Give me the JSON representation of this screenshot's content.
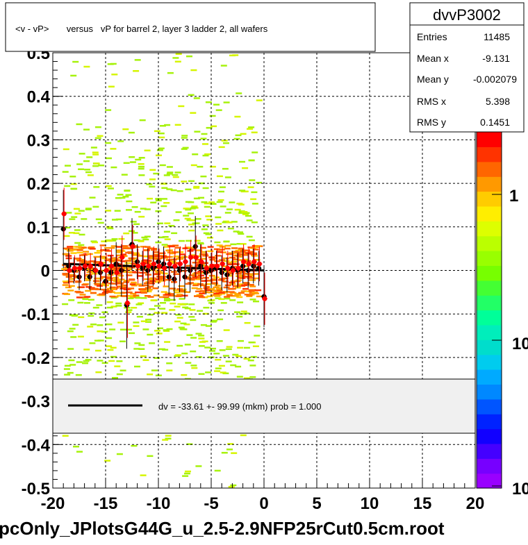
{
  "chart_data": {
    "type": "scatter",
    "title": "<v - vP>       versus   vP for barrel 2, layer 3 ladder 2, all wafers",
    "footer": "pcOnly_JPlotsG44G_u_2.5-2.9NFP25rCut0.5cm.root",
    "xlim": [
      -20,
      20
    ],
    "ylim": [
      -0.5,
      0.5
    ],
    "x_ticks": [
      "-20",
      "-15",
      "-10",
      "-5",
      "0",
      "5",
      "10",
      "15",
      "20"
    ],
    "y_ticks": [
      "-0.5",
      "-0.4",
      "-0.3",
      "-0.2",
      "-0.1",
      "0",
      "0.1",
      "0.2",
      "0.3",
      "0.4",
      "0.5"
    ],
    "grid": true,
    "stats": {
      "name": "dvvP3002",
      "rows": [
        {
          "label": "Entries",
          "value": "11485"
        },
        {
          "label": "Mean x",
          "value": "-9.131"
        },
        {
          "label": "Mean y",
          "value": "-0.002079"
        },
        {
          "label": "RMS x",
          "value": "5.398"
        },
        {
          "label": "RMS y",
          "value": "0.1451"
        }
      ]
    },
    "legend_text": "dv =  -33.61 +- 99.99 (mkm) prob = 1.000",
    "colorbar_labels": [
      "1",
      "10",
      "10"
    ],
    "fit_line": {
      "x": [
        -19,
        0
      ],
      "y": [
        0.015,
        0.0
      ]
    },
    "series": [
      {
        "color": "#000000",
        "x": [
          -19.0,
          -18.5,
          -18.0,
          -17.5,
          -17.0,
          -16.5,
          -16.0,
          -15.5,
          -15.0,
          -14.5,
          -14.0,
          -13.5,
          -13.0,
          -12.5,
          -12.0,
          -11.5,
          -11.0,
          -10.5,
          -10.0,
          -9.5,
          -9.0,
          -8.5,
          -8.0,
          -7.5,
          -7.0,
          -6.5,
          -6.0,
          -5.5,
          -5.0,
          -4.5,
          -4.0,
          -3.5,
          -3.0,
          -2.5,
          -2.0,
          -1.5,
          -1.0,
          -0.5,
          0.0
        ],
        "y": [
          0.095,
          0.01,
          0.0,
          -0.015,
          0.005,
          -0.015,
          0.0,
          -0.005,
          -0.025,
          -0.005,
          0.015,
          0.0,
          -0.08,
          0.06,
          0.02,
          0.005,
          0.0,
          0.005,
          0.02,
          0.015,
          -0.015,
          -0.02,
          0.0,
          -0.015,
          0.0,
          0.055,
          0.01,
          -0.005,
          0.0,
          0.005,
          -0.005,
          -0.01,
          0.005,
          0.0,
          0.01,
          0.0,
          0.01,
          0.005,
          -0.06
        ],
        "err": [
          0.09,
          0.04,
          0.03,
          0.03,
          0.03,
          0.03,
          0.03,
          0.04,
          0.05,
          0.04,
          0.05,
          0.06,
          0.1,
          0.06,
          0.04,
          0.04,
          0.05,
          0.04,
          0.04,
          0.04,
          0.04,
          0.05,
          0.05,
          0.05,
          0.05,
          0.07,
          0.05,
          0.05,
          0.04,
          0.04,
          0.04,
          0.04,
          0.04,
          0.04,
          0.04,
          0.04,
          0.04,
          0.04,
          0.07
        ]
      },
      {
        "color": "#ff0000",
        "x": [
          -19.0,
          -18.5,
          -18.0,
          -17.5,
          -17.0,
          -16.5,
          -16.0,
          -15.5,
          -15.0,
          -14.5,
          -14.0,
          -13.5,
          -13.0,
          -12.5,
          -12.0,
          -11.5,
          -11.0,
          -10.5,
          -10.0,
          -9.5,
          -9.0,
          -8.5,
          -8.0,
          -7.5,
          -7.0,
          -6.5,
          -6.0,
          -5.5,
          -5.0,
          -4.5,
          -4.0,
          -3.5,
          -3.0,
          -2.5,
          -2.0,
          -1.5,
          -1.0,
          -0.5,
          0.0
        ],
        "y": [
          0.13,
          0.0,
          0.005,
          0.005,
          0.01,
          0.01,
          0.0,
          0.015,
          0.0,
          0.01,
          -0.005,
          0.03,
          -0.075,
          0.055,
          0.01,
          0.015,
          0.01,
          0.015,
          0.01,
          0.005,
          0.015,
          0.01,
          0.015,
          0.02,
          0.03,
          0.03,
          0.02,
          0.005,
          0.01,
          0.01,
          0.015,
          0.005,
          0.0,
          0.005,
          0.02,
          0.015,
          0.02,
          0.015,
          -0.065
        ],
        "err": [
          0.06,
          0.04,
          0.03,
          0.03,
          0.03,
          0.03,
          0.03,
          0.04,
          0.04,
          0.04,
          0.04,
          0.05,
          0.08,
          0.05,
          0.04,
          0.04,
          0.04,
          0.04,
          0.04,
          0.04,
          0.04,
          0.04,
          0.04,
          0.04,
          0.04,
          0.05,
          0.04,
          0.04,
          0.04,
          0.04,
          0.04,
          0.04,
          0.04,
          0.04,
          0.04,
          0.04,
          0.04,
          0.04,
          0.06
        ]
      }
    ]
  }
}
